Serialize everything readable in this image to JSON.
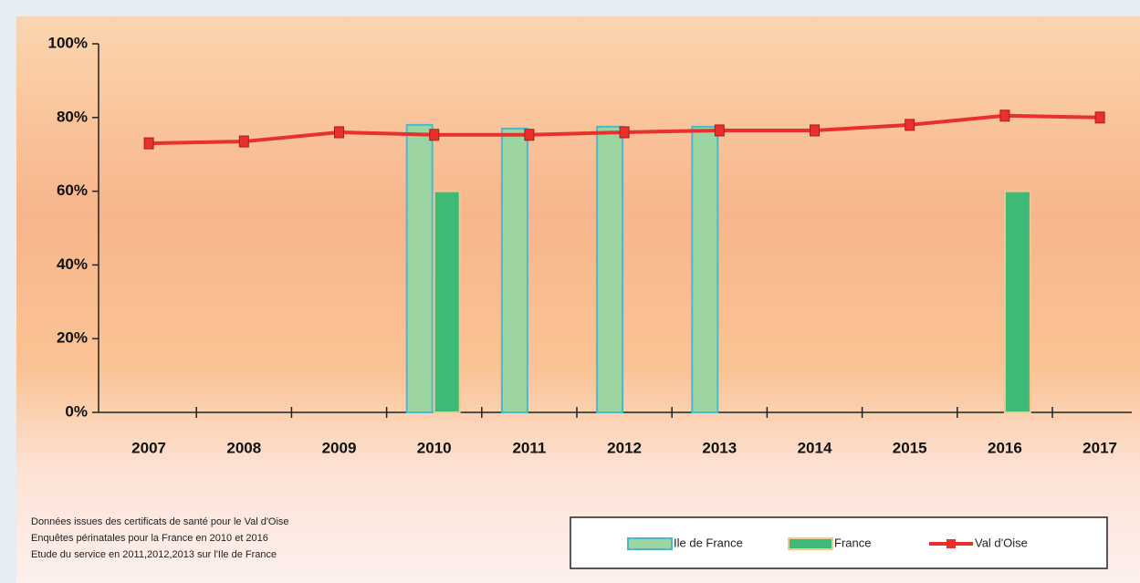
{
  "chart_data": {
    "type": "bar-line",
    "categories": [
      "2007",
      "2008",
      "2009",
      "2010",
      "2011",
      "2012",
      "2013",
      "2014",
      "2015",
      "2016",
      "2017"
    ],
    "series": [
      {
        "name": "Ile de France",
        "type": "bar",
        "color": "#9dd5a2",
        "edge": "#4cb8d0",
        "values": [
          null,
          null,
          null,
          78,
          77,
          77.5,
          77.5,
          null,
          null,
          null,
          null
        ]
      },
      {
        "name": "France",
        "type": "bar",
        "color": "#3dba78",
        "edge": "#f0c890",
        "values": [
          null,
          null,
          null,
          60,
          null,
          null,
          null,
          null,
          null,
          60,
          null
        ]
      },
      {
        "name": "Val d'Oise",
        "type": "line",
        "color": "#e8302c",
        "values": [
          73,
          73.5,
          76,
          75.3,
          75.3,
          76,
          76.5,
          76.5,
          78,
          80.5,
          80
        ]
      }
    ],
    "ylim": [
      0,
      100
    ],
    "yticks": [
      {
        "value": 0,
        "label": "0%"
      },
      {
        "value": 20,
        "label": "20%"
      },
      {
        "value": 40,
        "label": "40%"
      },
      {
        "value": 60,
        "label": "60%"
      },
      {
        "value": 80,
        "label": "80%"
      },
      {
        "value": 100,
        "label": "100%"
      }
    ],
    "notes": [
      "Données issues des certificats de santé pour le Val d'Oise",
      "Enquêtes périnatales pour la France en  2010 et 2016",
      "Etude du service en 2011,2012,2013 sur l'Ile de France"
    ],
    "legend": "bottom-right"
  }
}
